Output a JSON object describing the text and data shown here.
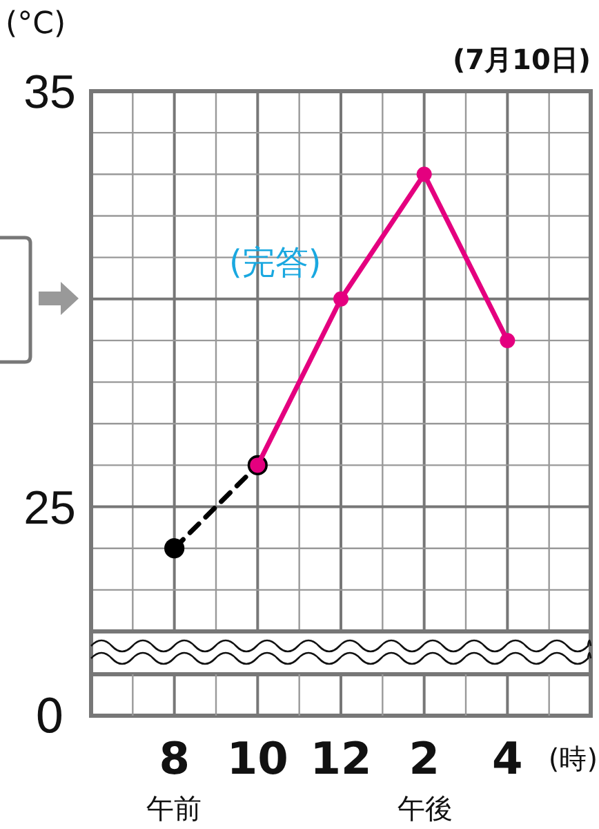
{
  "chart_data": [
    {
      "type": "line",
      "title": "(7月10日)",
      "xlabel": "(時)",
      "annotations": [
        "(°C)",
        "(完答)",
        "午前",
        "午後"
      ],
      "categories": [
        "8",
        "10",
        "12",
        "2",
        "4"
      ],
      "ylim": [
        22,
        35
      ],
      "yticks": [
        25,
        35
      ],
      "grid": true,
      "marker": "circle",
      "series": [
        {
          "values": [
            24,
            26,
            null,
            null,
            null
          ],
          "color": "#000000",
          "line_style": "dashed"
        },
        {
          "values": [
            null,
            26,
            30,
            33,
            29
          ],
          "color": "#e4007f",
          "line_style": "solid"
        }
      ]
    },
    {
      "type": "other",
      "annotations": [
        "0"
      ]
    }
  ]
}
